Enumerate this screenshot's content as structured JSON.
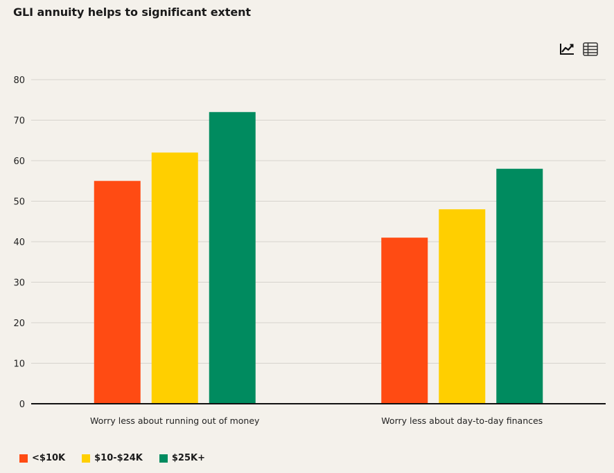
{
  "title": "GLI annuity helps to significant extent",
  "toolbar": {
    "chart_icon": "line-chart-icon",
    "table_icon": "table-grid-icon"
  },
  "chart_data": {
    "type": "bar",
    "title": "GLI annuity helps to significant extent",
    "xlabel": "",
    "ylabel": "",
    "ylim": [
      0,
      80
    ],
    "yticks": [
      0,
      10,
      20,
      30,
      40,
      50,
      60,
      70,
      80
    ],
    "grid": true,
    "legend_position": "bottom-left",
    "categories": [
      "Worry less about running out of money",
      "Worry less about day-to-day finances"
    ],
    "series": [
      {
        "name": "<$10K",
        "color": "#ff4b13",
        "values": [
          55,
          41
        ]
      },
      {
        "name": "$10-$24K",
        "color": "#ffcf00",
        "values": [
          62,
          48
        ]
      },
      {
        "name": "$25K+",
        "color": "#008b5f",
        "values": [
          72,
          58
        ]
      }
    ]
  }
}
